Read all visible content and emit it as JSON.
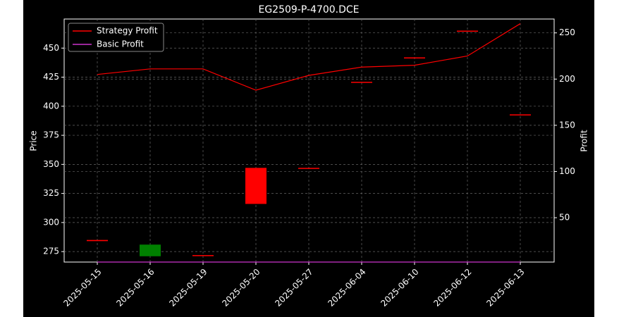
{
  "chart_data": {
    "type": "candlestick",
    "title": "EG2509-P-4700.DCE",
    "y_label": "Price",
    "y2_label": "Profit",
    "categories": [
      "2025-05-15",
      "2025-05-16",
      "2025-05-19",
      "2025-05-20",
      "2025-05-27",
      "2025-06-04",
      "2025-06-10",
      "2025-06-12",
      "2025-06-13"
    ],
    "open": [
      284,
      281,
      272,
      316,
      347,
      421,
      442,
      465,
      393
    ],
    "close": [
      285,
      271,
      272,
      347,
      347,
      421,
      442,
      465,
      393
    ],
    "up_color": "#ff0000",
    "down_color": "#008000",
    "series": [
      {
        "name": "Strategy Profit",
        "color": "#ff0000",
        "axis": "y2",
        "values": [
          205,
          211,
          211,
          188,
          204,
          213,
          215,
          225,
          260
        ]
      },
      {
        "name": "Basic Profit",
        "color": "#cc33cc",
        "axis": "y2",
        "values": [
          2,
          2,
          2,
          2,
          2,
          2,
          2,
          2,
          2
        ]
      }
    ],
    "ylim": [
      266,
      475
    ],
    "yticks": [
      275,
      300,
      325,
      350,
      375,
      400,
      425,
      450
    ],
    "y2lim": [
      2,
      265
    ],
    "y2ticks": [
      50,
      100,
      150,
      200,
      250
    ],
    "grid": true,
    "legend": "upper-left"
  }
}
